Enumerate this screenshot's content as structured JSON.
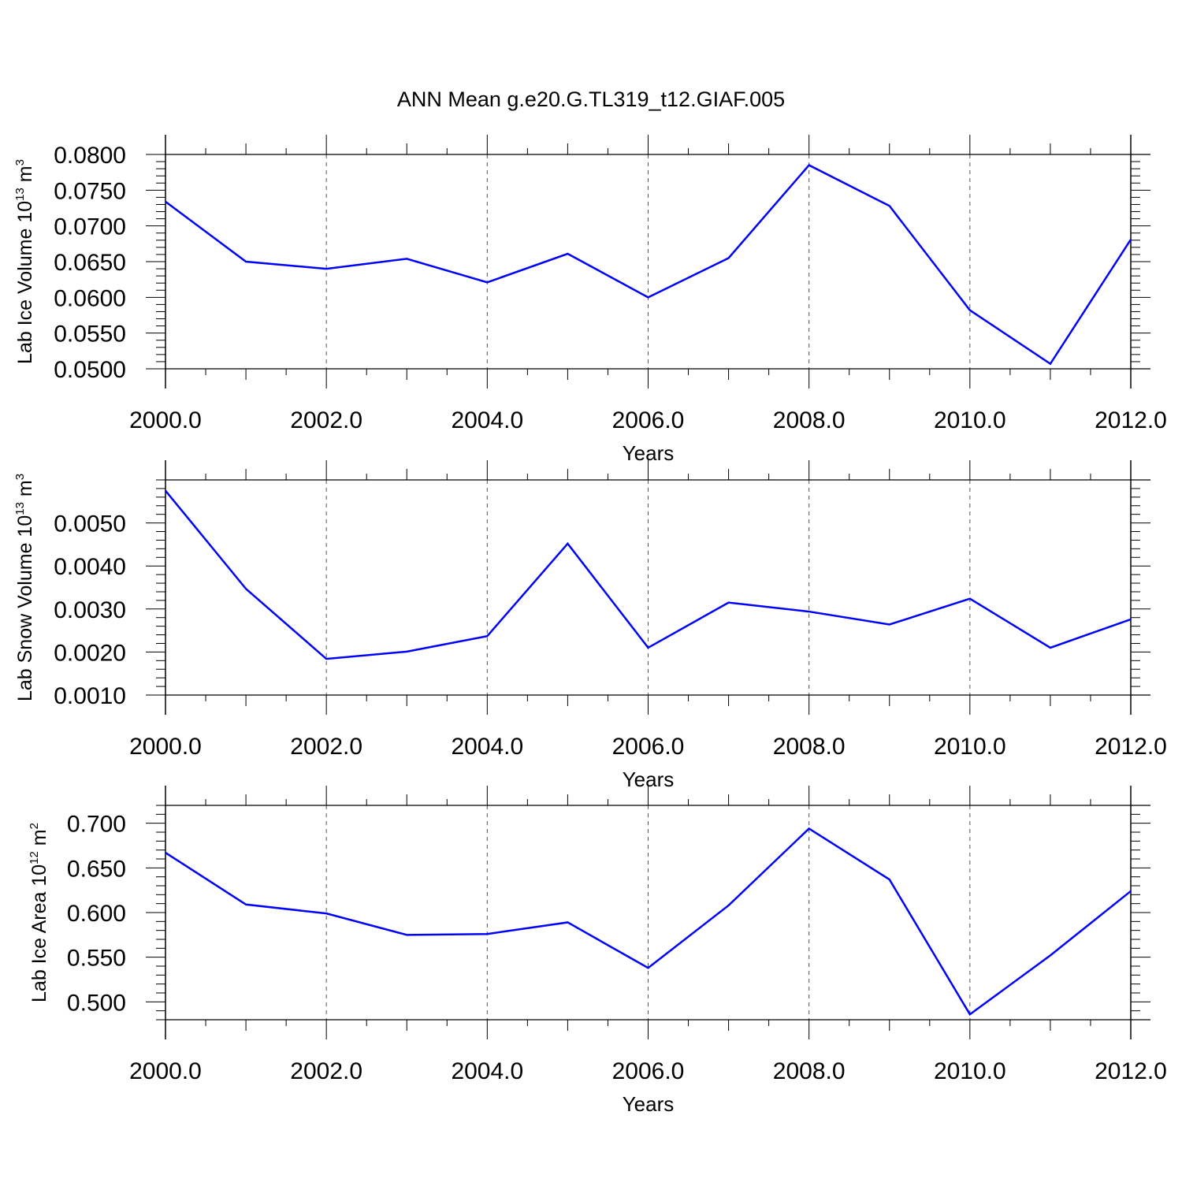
{
  "title": "ANN Mean g.e20.G.TL319_t12.GIAF.005",
  "colors": {
    "line": "#0000ff",
    "axis": "#000000",
    "grid": "#555555"
  },
  "chart_data": [
    {
      "type": "line",
      "id": "ice-volume",
      "ylabel_main": "Lab Ice Volume 10",
      "ylabel_exp": "13",
      "ylabel_unit": " m",
      "ylabel_unit_exp": "3",
      "xlabel": "Years",
      "xlim": [
        2000,
        2012
      ],
      "ylim": [
        0.05,
        0.08
      ],
      "x_ticks": [
        2000,
        2002,
        2004,
        2006,
        2008,
        2010,
        2012
      ],
      "x_tick_labels": [
        "2000.0",
        "2002.0",
        "2004.0",
        "2006.0",
        "2008.0",
        "2010.0",
        "2012.0"
      ],
      "y_ticks": [
        0.05,
        0.055,
        0.06,
        0.065,
        0.07,
        0.075,
        0.08
      ],
      "y_tick_labels": [
        "0.0500",
        "0.0550",
        "0.0600",
        "0.0650",
        "0.0700",
        "0.0750",
        "0.0800"
      ],
      "grid": "vertical dashed at major x ticks",
      "x": [
        2000,
        2001,
        2002,
        2003,
        2004,
        2005,
        2006,
        2007,
        2008,
        2009,
        2010,
        2011,
        2012
      ],
      "values": [
        0.0734,
        0.065,
        0.064,
        0.0654,
        0.0621,
        0.0661,
        0.06,
        0.0655,
        0.0785,
        0.0728,
        0.0582,
        0.0507,
        0.0681
      ]
    },
    {
      "type": "line",
      "id": "snow-volume",
      "ylabel_main": "Lab Snow Volume 10",
      "ylabel_exp": "13",
      "ylabel_unit": " m",
      "ylabel_unit_exp": "3",
      "xlabel": "Years",
      "xlim": [
        2000,
        2012
      ],
      "ylim": [
        0.001,
        0.006
      ],
      "x_ticks": [
        2000,
        2002,
        2004,
        2006,
        2008,
        2010,
        2012
      ],
      "x_tick_labels": [
        "2000.0",
        "2002.0",
        "2004.0",
        "2006.0",
        "2008.0",
        "2010.0",
        "2012.0"
      ],
      "y_ticks": [
        0.001,
        0.002,
        0.003,
        0.004,
        0.005
      ],
      "y_tick_labels": [
        "0.0010",
        "0.0020",
        "0.0030",
        "0.0040",
        "0.0050"
      ],
      "grid": "vertical dashed at major x ticks",
      "x": [
        2000,
        2001,
        2002,
        2003,
        2004,
        2005,
        2006,
        2007,
        2008,
        2009,
        2010,
        2011,
        2012
      ],
      "values": [
        0.00575,
        0.00347,
        0.00184,
        0.00201,
        0.00237,
        0.00452,
        0.0021,
        0.00315,
        0.00294,
        0.00264,
        0.00324,
        0.0021,
        0.00276
      ]
    },
    {
      "type": "line",
      "id": "ice-area",
      "ylabel_main": "Lab Ice Area 10",
      "ylabel_exp": "12",
      "ylabel_unit": " m",
      "ylabel_unit_exp": "2",
      "xlabel": "Years",
      "xlim": [
        2000,
        2012
      ],
      "ylim": [
        0.48,
        0.72
      ],
      "x_ticks": [
        2000,
        2002,
        2004,
        2006,
        2008,
        2010,
        2012
      ],
      "x_tick_labels": [
        "2000.0",
        "2002.0",
        "2004.0",
        "2006.0",
        "2008.0",
        "2010.0",
        "2012.0"
      ],
      "y_ticks": [
        0.5,
        0.55,
        0.6,
        0.65,
        0.7
      ],
      "y_tick_labels": [
        "0.500",
        "0.550",
        "0.600",
        "0.650",
        "0.700"
      ],
      "grid": "vertical dashed at major x ticks",
      "x": [
        2000,
        2001,
        2002,
        2003,
        2004,
        2005,
        2006,
        2007,
        2008,
        2009,
        2010,
        2011,
        2012
      ],
      "values": [
        0.667,
        0.609,
        0.599,
        0.575,
        0.576,
        0.589,
        0.538,
        0.608,
        0.694,
        0.637,
        0.486,
        0.552,
        0.624
      ]
    }
  ]
}
